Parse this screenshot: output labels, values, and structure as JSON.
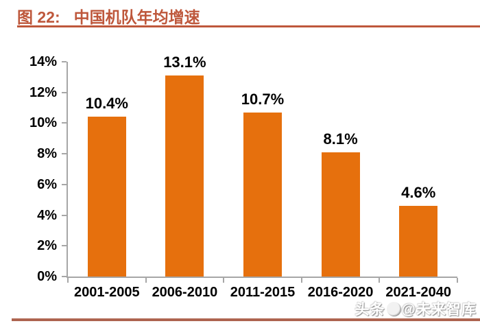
{
  "title": {
    "figure_label": "图 22:",
    "text": "中国机队年均增速"
  },
  "watermark": {
    "source": "头条",
    "handle": "@未来智库"
  },
  "colors": {
    "bar": "#e6700d",
    "title_accent": "#be573b",
    "axis": "#a6a6a6",
    "bottom_rule": "#ae6450",
    "label_text": "#000000"
  },
  "chart_data": {
    "type": "bar",
    "title": "中国机队年均增速",
    "categories": [
      "2001-2005",
      "2006-2010",
      "2011-2015",
      "2016-2020",
      "2021-2040"
    ],
    "values": [
      10.4,
      13.1,
      10.7,
      8.1,
      4.6
    ],
    "data_labels": [
      "10.4%",
      "13.1%",
      "10.7%",
      "8.1%",
      "4.6%"
    ],
    "xlabel": "",
    "ylabel": "",
    "ylim": [
      0,
      14
    ],
    "y_ticks": [
      "0%",
      "2%",
      "4%",
      "6%",
      "8%",
      "10%",
      "12%",
      "14%"
    ],
    "grid": false,
    "legend": null,
    "bar_color": "#e6700d"
  }
}
